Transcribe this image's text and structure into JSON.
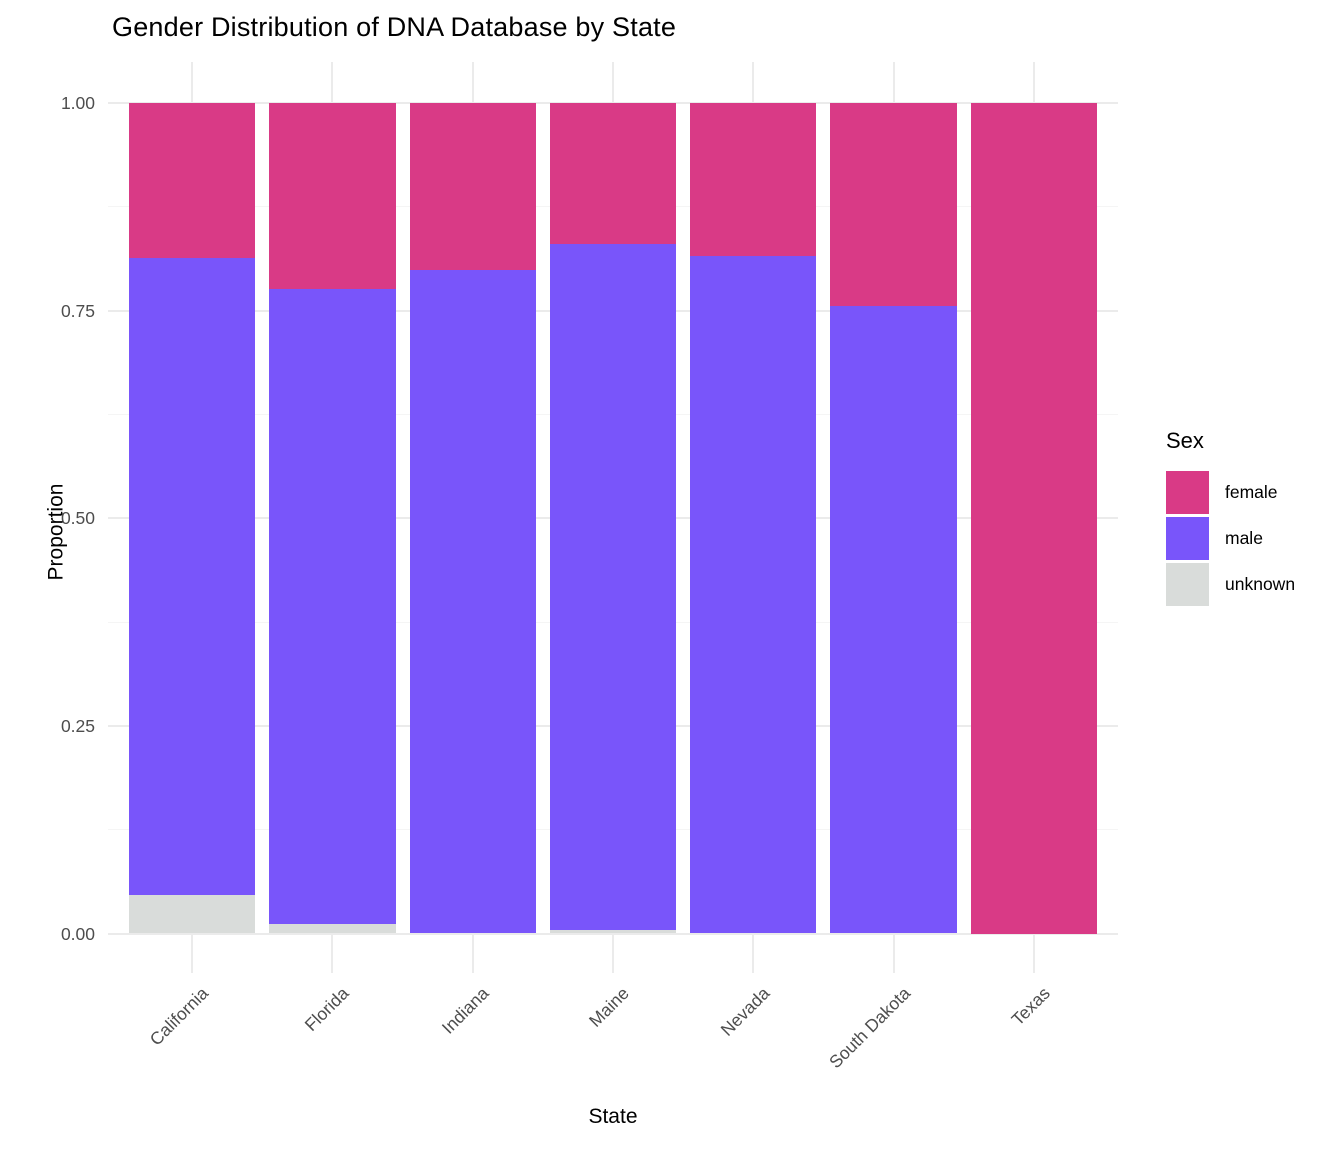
{
  "chart_data": {
    "type": "bar",
    "subtype": "stacked-normalized",
    "title": "Gender Distribution of DNA Database by State",
    "xlabel": "State",
    "ylabel": "Proportion",
    "ylim": [
      0,
      1
    ],
    "grid": true,
    "y_ticks": [
      0.0,
      0.25,
      0.5,
      0.75,
      1.0
    ],
    "y_tick_labels": [
      "0.00",
      "0.25",
      "0.50",
      "0.75",
      "1.00"
    ],
    "y_minor_ticks": [
      0.125,
      0.375,
      0.625,
      0.875
    ],
    "categories": [
      "California",
      "Florida",
      "Indiana",
      "Maine",
      "Nevada",
      "South Dakota",
      "Texas"
    ],
    "series": [
      {
        "name": "female",
        "color": "#D93A86",
        "values": [
          0.187,
          0.224,
          0.201,
          0.17,
          0.184,
          0.244,
          1.0
        ]
      },
      {
        "name": "male",
        "color": "#7955FA",
        "values": [
          0.767,
          0.764,
          0.799,
          0.826,
          0.816,
          0.756,
          0.0
        ]
      },
      {
        "name": "unknown",
        "color": "#D9DCDA",
        "values": [
          0.046,
          0.012,
          0.0,
          0.004,
          0.0,
          0.0,
          0.0
        ]
      }
    ],
    "legend": {
      "title": "Sex",
      "position": "right",
      "entries": [
        {
          "label": "female",
          "color": "#D93A86"
        },
        {
          "label": "male",
          "color": "#7955FA"
        },
        {
          "label": "unknown",
          "color": "#D9DCDA"
        }
      ]
    },
    "colors": {
      "grid_major": "#EBEBEB",
      "grid_minor": "#F5F5F5",
      "axis_text": "#4D4D4D",
      "background": "#FFFFFF"
    }
  }
}
